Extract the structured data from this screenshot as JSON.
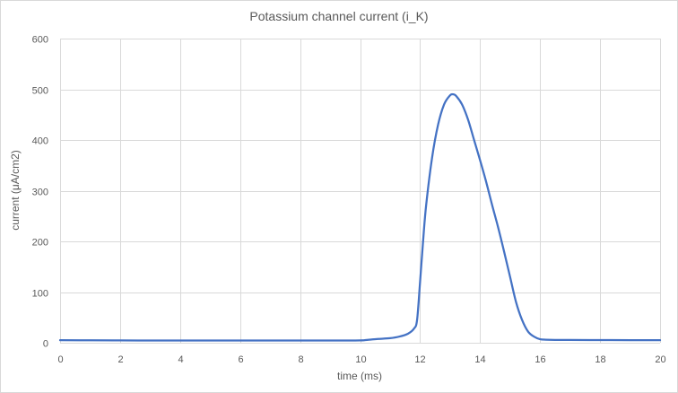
{
  "chart_data": {
    "type": "line",
    "title": "Potassium channel current (i_K)",
    "xlabel": "time (ms)",
    "ylabel": "current (μA/cm2)",
    "xlim": [
      0,
      20
    ],
    "ylim": [
      0,
      600
    ],
    "xticks": [
      0,
      2,
      4,
      6,
      8,
      10,
      12,
      14,
      16,
      18,
      20
    ],
    "yticks": [
      0,
      100,
      200,
      300,
      400,
      500,
      600
    ],
    "grid": true,
    "legend": "none",
    "colors": {
      "series": "#4472c4",
      "grid": "#d9d9d9",
      "text": "#595959"
    },
    "series": [
      {
        "x": [
          0,
          1,
          2,
          3,
          4,
          5,
          6,
          7,
          8,
          9,
          10,
          10.3,
          10.6,
          11,
          11.3,
          11.6,
          11.8,
          11.9,
          12,
          12.1,
          12.2,
          12.4,
          12.6,
          12.8,
          13,
          13.1,
          13.2,
          13.4,
          13.6,
          13.8,
          14,
          14.2,
          14.4,
          14.6,
          14.8,
          15,
          15.2,
          15.4,
          15.6,
          15.8,
          16,
          16.2,
          16.5,
          17,
          18,
          19,
          20
        ],
        "values": [
          5,
          4.8,
          4.6,
          4.5,
          4.4,
          4.4,
          4.4,
          4.4,
          4.4,
          4.4,
          4.6,
          6,
          7.5,
          9,
          12,
          18,
          28,
          45,
          120,
          200,
          270,
          365,
          430,
          470,
          488,
          490,
          487,
          470,
          440,
          400,
          360,
          318,
          272,
          228,
          180,
          130,
          80,
          45,
          22,
          12,
          7,
          6,
          5.5,
          5.5,
          5.3,
          5.1,
          5
        ]
      }
    ]
  }
}
